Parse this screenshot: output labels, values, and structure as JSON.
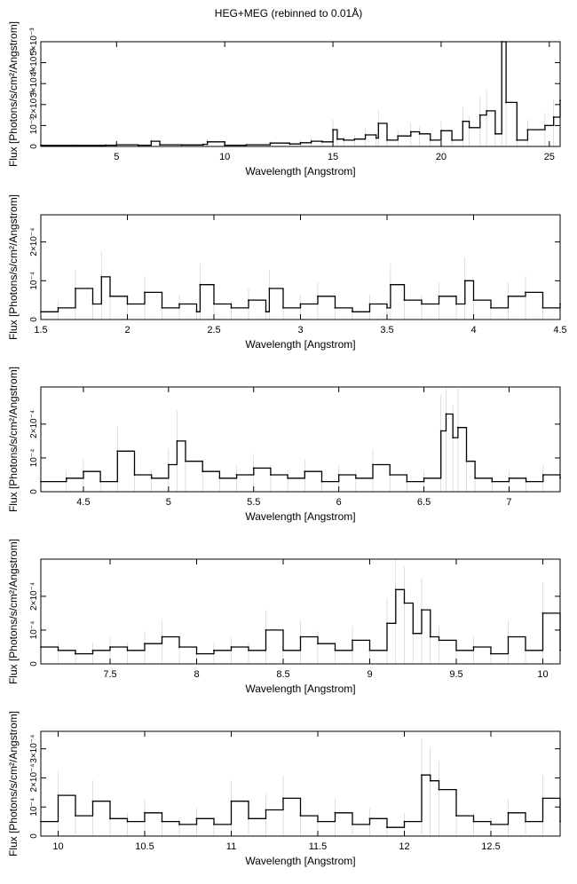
{
  "figure": {
    "title": "HEG+MEG (rebinned to 0.01Å)"
  },
  "chart_data": [
    {
      "type": "line",
      "xlabel": "Wavelength [Angstrom]",
      "ylabel": "Flux [Photons/s/cm²/Angstrom]",
      "xlim": [
        1.5,
        25.5
      ],
      "ylim": [
        0,
        0.005
      ],
      "xticks": [
        5,
        10,
        15,
        20,
        25
      ],
      "yticks": [
        {
          "v": 0,
          "label": "0"
        },
        {
          "v": 0.001,
          "label": "10⁻³"
        },
        {
          "v": 0.002,
          "label": "2×10⁻³"
        },
        {
          "v": 0.003,
          "label": "3×10⁻³"
        },
        {
          "v": 0.004,
          "label": "4×10⁻³"
        },
        {
          "v": 0.005,
          "label": "5×10⁻³"
        }
      ],
      "series": [
        {
          "x": [
            1.5,
            3.0,
            4.5,
            5.0,
            6.0,
            6.6,
            7.0,
            8.0,
            9.0,
            9.2,
            10.0,
            11.0,
            12.1,
            13.0,
            13.5,
            14.0,
            14.5,
            15.0,
            15.2,
            15.5,
            16.0,
            16.5,
            17.0,
            17.1,
            17.5,
            18.0,
            18.6,
            19.0,
            19.5,
            20.0,
            20.5,
            21.0,
            21.3,
            21.8,
            22.1,
            22.5,
            22.8,
            23.0,
            23.5,
            24.0,
            24.8,
            25.2,
            25.5
          ],
          "y": [
            5e-05,
            5e-05,
            6e-05,
            8e-05,
            6e-05,
            0.00025,
            8e-05,
            7e-05,
            0.0001,
            0.00022,
            6e-05,
            8e-05,
            0.00016,
            0.00012,
            0.00018,
            0.00025,
            0.00022,
            0.0008,
            0.00035,
            0.0003,
            0.00035,
            0.00055,
            0.0004,
            0.0011,
            0.0003,
            0.0005,
            0.0007,
            0.0006,
            0.0003,
            0.00075,
            0.0003,
            0.0012,
            0.0009,
            0.0015,
            0.0017,
            0.0006,
            0.005,
            0.0021,
            0.0003,
            0.0008,
            0.001,
            0.0014,
            0.0022
          ]
        }
      ]
    },
    {
      "type": "line",
      "xlabel": "Wavelength [Angstrom]",
      "ylabel": "Flux [Photons/s/cm²/Angstrom]",
      "xlim": [
        1.5,
        4.5
      ],
      "ylim": [
        0,
        0.00027
      ],
      "xticks": [
        1.5,
        2,
        2.5,
        3,
        3.5,
        4,
        4.5
      ],
      "yticks": [
        {
          "v": 0,
          "label": "0"
        },
        {
          "v": 0.0001,
          "label": "10⁻⁴"
        },
        {
          "v": 0.0002,
          "label": "2×10⁻⁴"
        }
      ],
      "series": [
        {
          "x": [
            1.5,
            1.6,
            1.7,
            1.8,
            1.85,
            1.9,
            2.0,
            2.1,
            2.2,
            2.3,
            2.4,
            2.42,
            2.5,
            2.6,
            2.7,
            2.8,
            2.82,
            2.9,
            3.0,
            3.1,
            3.2,
            3.3,
            3.4,
            3.5,
            3.52,
            3.6,
            3.7,
            3.8,
            3.9,
            3.95,
            4.0,
            4.1,
            4.2,
            4.3,
            4.4,
            4.5
          ],
          "y": [
            2e-05,
            3e-05,
            8e-05,
            4e-05,
            0.00011,
            6e-05,
            4e-05,
            7e-05,
            3e-05,
            4e-05,
            2e-05,
            9e-05,
            4e-05,
            3e-05,
            5e-05,
            2e-05,
            8e-05,
            3e-05,
            4e-05,
            6e-05,
            3e-05,
            2e-05,
            4e-05,
            3e-05,
            9e-05,
            5e-05,
            4e-05,
            6e-05,
            4e-05,
            0.0001,
            5e-05,
            3e-05,
            6e-05,
            7e-05,
            3e-05,
            4e-05
          ]
        }
      ]
    },
    {
      "type": "line",
      "xlabel": "Wavelength [Angstrom]",
      "ylabel": "Flux [Photons/s/cm²/Angstrom]",
      "xlim": [
        4.25,
        7.3
      ],
      "ylim": [
        0,
        0.00031
      ],
      "xticks": [
        4.5,
        5,
        5.5,
        6,
        6.5,
        7
      ],
      "yticks": [
        {
          "v": 0,
          "label": "0"
        },
        {
          "v": 0.0001,
          "label": "10⁻⁴"
        },
        {
          "v": 0.0002,
          "label": "2×10⁻⁴"
        }
      ],
      "series": [
        {
          "x": [
            4.25,
            4.4,
            4.5,
            4.6,
            4.7,
            4.8,
            4.9,
            5.0,
            5.05,
            5.1,
            5.2,
            5.3,
            5.4,
            5.5,
            5.6,
            5.7,
            5.8,
            5.9,
            6.0,
            6.1,
            6.2,
            6.3,
            6.4,
            6.5,
            6.6,
            6.63,
            6.67,
            6.7,
            6.75,
            6.8,
            6.9,
            7.0,
            7.1,
            7.2,
            7.3
          ],
          "y": [
            3e-05,
            4e-05,
            6e-05,
            3e-05,
            0.00012,
            5e-05,
            4e-05,
            8e-05,
            0.00015,
            9e-05,
            6e-05,
            4e-05,
            5e-05,
            7e-05,
            5e-05,
            4e-05,
            6e-05,
            3e-05,
            5e-05,
            4e-05,
            8e-05,
            5e-05,
            3e-05,
            4e-05,
            0.00018,
            0.00023,
            0.00016,
            0.00019,
            9e-05,
            4e-05,
            3e-05,
            4e-05,
            3e-05,
            5e-05,
            4e-05
          ]
        }
      ]
    },
    {
      "type": "line",
      "xlabel": "Wavelength [Angstrom]",
      "ylabel": "Flux [Photons/s/cm²/Angstrom]",
      "xlim": [
        7.1,
        10.1
      ],
      "ylim": [
        0,
        0.00031
      ],
      "xticks": [
        7.5,
        8,
        8.5,
        9,
        9.5,
        10
      ],
      "yticks": [
        {
          "v": 0,
          "label": "0"
        },
        {
          "v": 0.0001,
          "label": "10⁻⁴"
        },
        {
          "v": 0.0002,
          "label": "2×10⁻⁴"
        }
      ],
      "series": [
        {
          "x": [
            7.1,
            7.2,
            7.3,
            7.4,
            7.5,
            7.6,
            7.7,
            7.8,
            7.9,
            8.0,
            8.1,
            8.2,
            8.3,
            8.4,
            8.5,
            8.6,
            8.7,
            8.8,
            8.9,
            9.0,
            9.1,
            9.15,
            9.2,
            9.25,
            9.3,
            9.35,
            9.4,
            9.5,
            9.6,
            9.7,
            9.8,
            9.9,
            10.0,
            10.1
          ],
          "y": [
            5e-05,
            4e-05,
            3e-05,
            4e-05,
            5e-05,
            4e-05,
            6e-05,
            8e-05,
            5e-05,
            3e-05,
            4e-05,
            5e-05,
            4e-05,
            0.0001,
            4e-05,
            8e-05,
            6e-05,
            4e-05,
            7e-05,
            4e-05,
            0.00012,
            0.00022,
            0.00018,
            9e-05,
            0.00016,
            8e-05,
            7e-05,
            4e-05,
            5e-05,
            3e-05,
            8e-05,
            4e-05,
            0.00015,
            4e-05
          ]
        }
      ]
    },
    {
      "type": "line",
      "xlabel": "Wavelength [Angstrom]",
      "ylabel": "Flux [Photons/s/cm²/Angstrom]",
      "xlim": [
        9.9,
        12.9
      ],
      "ylim": [
        0,
        0.00036
      ],
      "xticks": [
        10,
        10.5,
        11,
        11.5,
        12,
        12.5
      ],
      "yticks": [
        {
          "v": 0,
          "label": "0"
        },
        {
          "v": 0.0001,
          "label": "10⁻⁴"
        },
        {
          "v": 0.0002,
          "label": "2×10⁻⁴"
        },
        {
          "v": 0.0003,
          "label": "3×10⁻⁴"
        }
      ],
      "series": [
        {
          "x": [
            9.9,
            10.0,
            10.1,
            10.2,
            10.3,
            10.4,
            10.5,
            10.6,
            10.7,
            10.8,
            10.9,
            11.0,
            11.1,
            11.2,
            11.3,
            11.4,
            11.5,
            11.6,
            11.7,
            11.8,
            11.9,
            12.0,
            12.1,
            12.15,
            12.2,
            12.3,
            12.4,
            12.5,
            12.6,
            12.7,
            12.8,
            12.9
          ],
          "y": [
            5e-05,
            0.00014,
            7e-05,
            0.00012,
            6e-05,
            5e-05,
            8e-05,
            5e-05,
            4e-05,
            6e-05,
            4e-05,
            0.00012,
            6e-05,
            9e-05,
            0.00013,
            7e-05,
            5e-05,
            8e-05,
            4e-05,
            6e-05,
            3e-05,
            5e-05,
            0.00021,
            0.00019,
            0.00016,
            7e-05,
            5e-05,
            4e-05,
            8e-05,
            5e-05,
            0.00013,
            5e-05
          ]
        }
      ]
    }
  ]
}
